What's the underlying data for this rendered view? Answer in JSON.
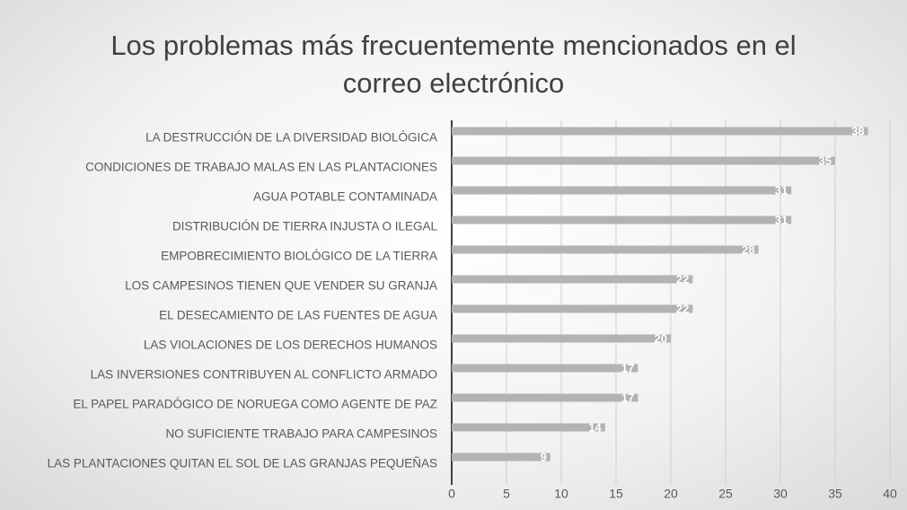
{
  "chart_data": {
    "type": "bar",
    "orientation": "horizontal",
    "title": "Los problemas más frecuentemente mencionados en el correo electrónico",
    "categories": [
      "LA DESTRUCCIÓN DE LA DIVERSIDAD BIOLÓGICA",
      "CONDICIONES DE TRABAJO MALAS EN LAS PLANTACIONES",
      "AGUA POTABLE CONTAMINADA",
      "DISTRIBUCIÓN DE TIERRA INJUSTA O ILEGAL",
      "EMPOBRECIMIENTO BIOLÓGICO DE LA TIERRA",
      "LOS CAMPESINOS TIENEN QUE VENDER SU GRANJA",
      "EL DESECAMIENTO DE LAS FUENTES DE AGUA",
      "LAS VIOLACIONES DE LOS DERECHOS HUMANOS",
      "LAS INVERSIONES CONTRIBUYEN AL CONFLICTO ARMADO",
      "EL PAPEL PARADÓGICO DE NORUEGA COMO AGENTE DE PAZ",
      "NO SUFICIENTE TRABAJO PARA CAMPESINOS",
      "LAS PLANTACIONES QUITAN EL SOL DE LAS GRANJAS PEQUEÑAS"
    ],
    "values": [
      38,
      35,
      31,
      31,
      28,
      22,
      22,
      20,
      17,
      17,
      14,
      9
    ],
    "color": "#b3b3b3",
    "xlim": [
      0,
      40
    ],
    "xticks": [
      0,
      5,
      10,
      15,
      20,
      25,
      30,
      35,
      40
    ],
    "grid": true
  }
}
